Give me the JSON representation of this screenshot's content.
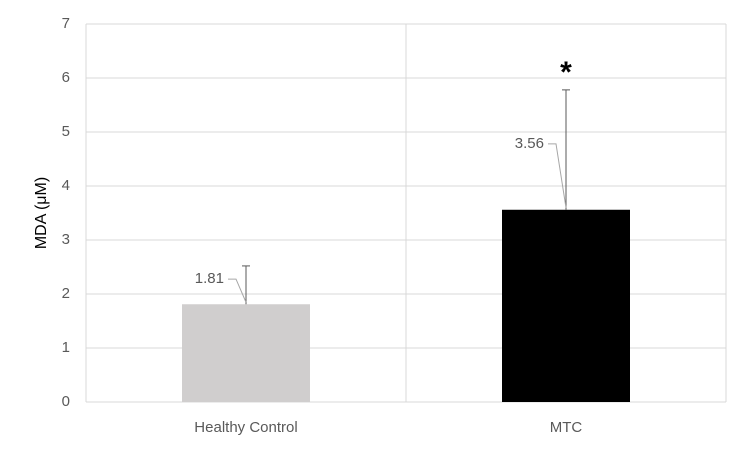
{
  "chart_data": {
    "type": "bar",
    "y_label": "MDA (μM)",
    "categories": [
      "Healthy Control",
      "MTC"
    ],
    "values": [
      1.81,
      3.56
    ],
    "errors": [
      0.71,
      2.22
    ],
    "colors": [
      "#d0cece",
      "#000000"
    ],
    "significance_marks": [
      null,
      "*"
    ],
    "ylim": [
      0,
      7
    ],
    "yticks": [
      0,
      1,
      2,
      3,
      4,
      5,
      6,
      7
    ],
    "grid": true
  }
}
